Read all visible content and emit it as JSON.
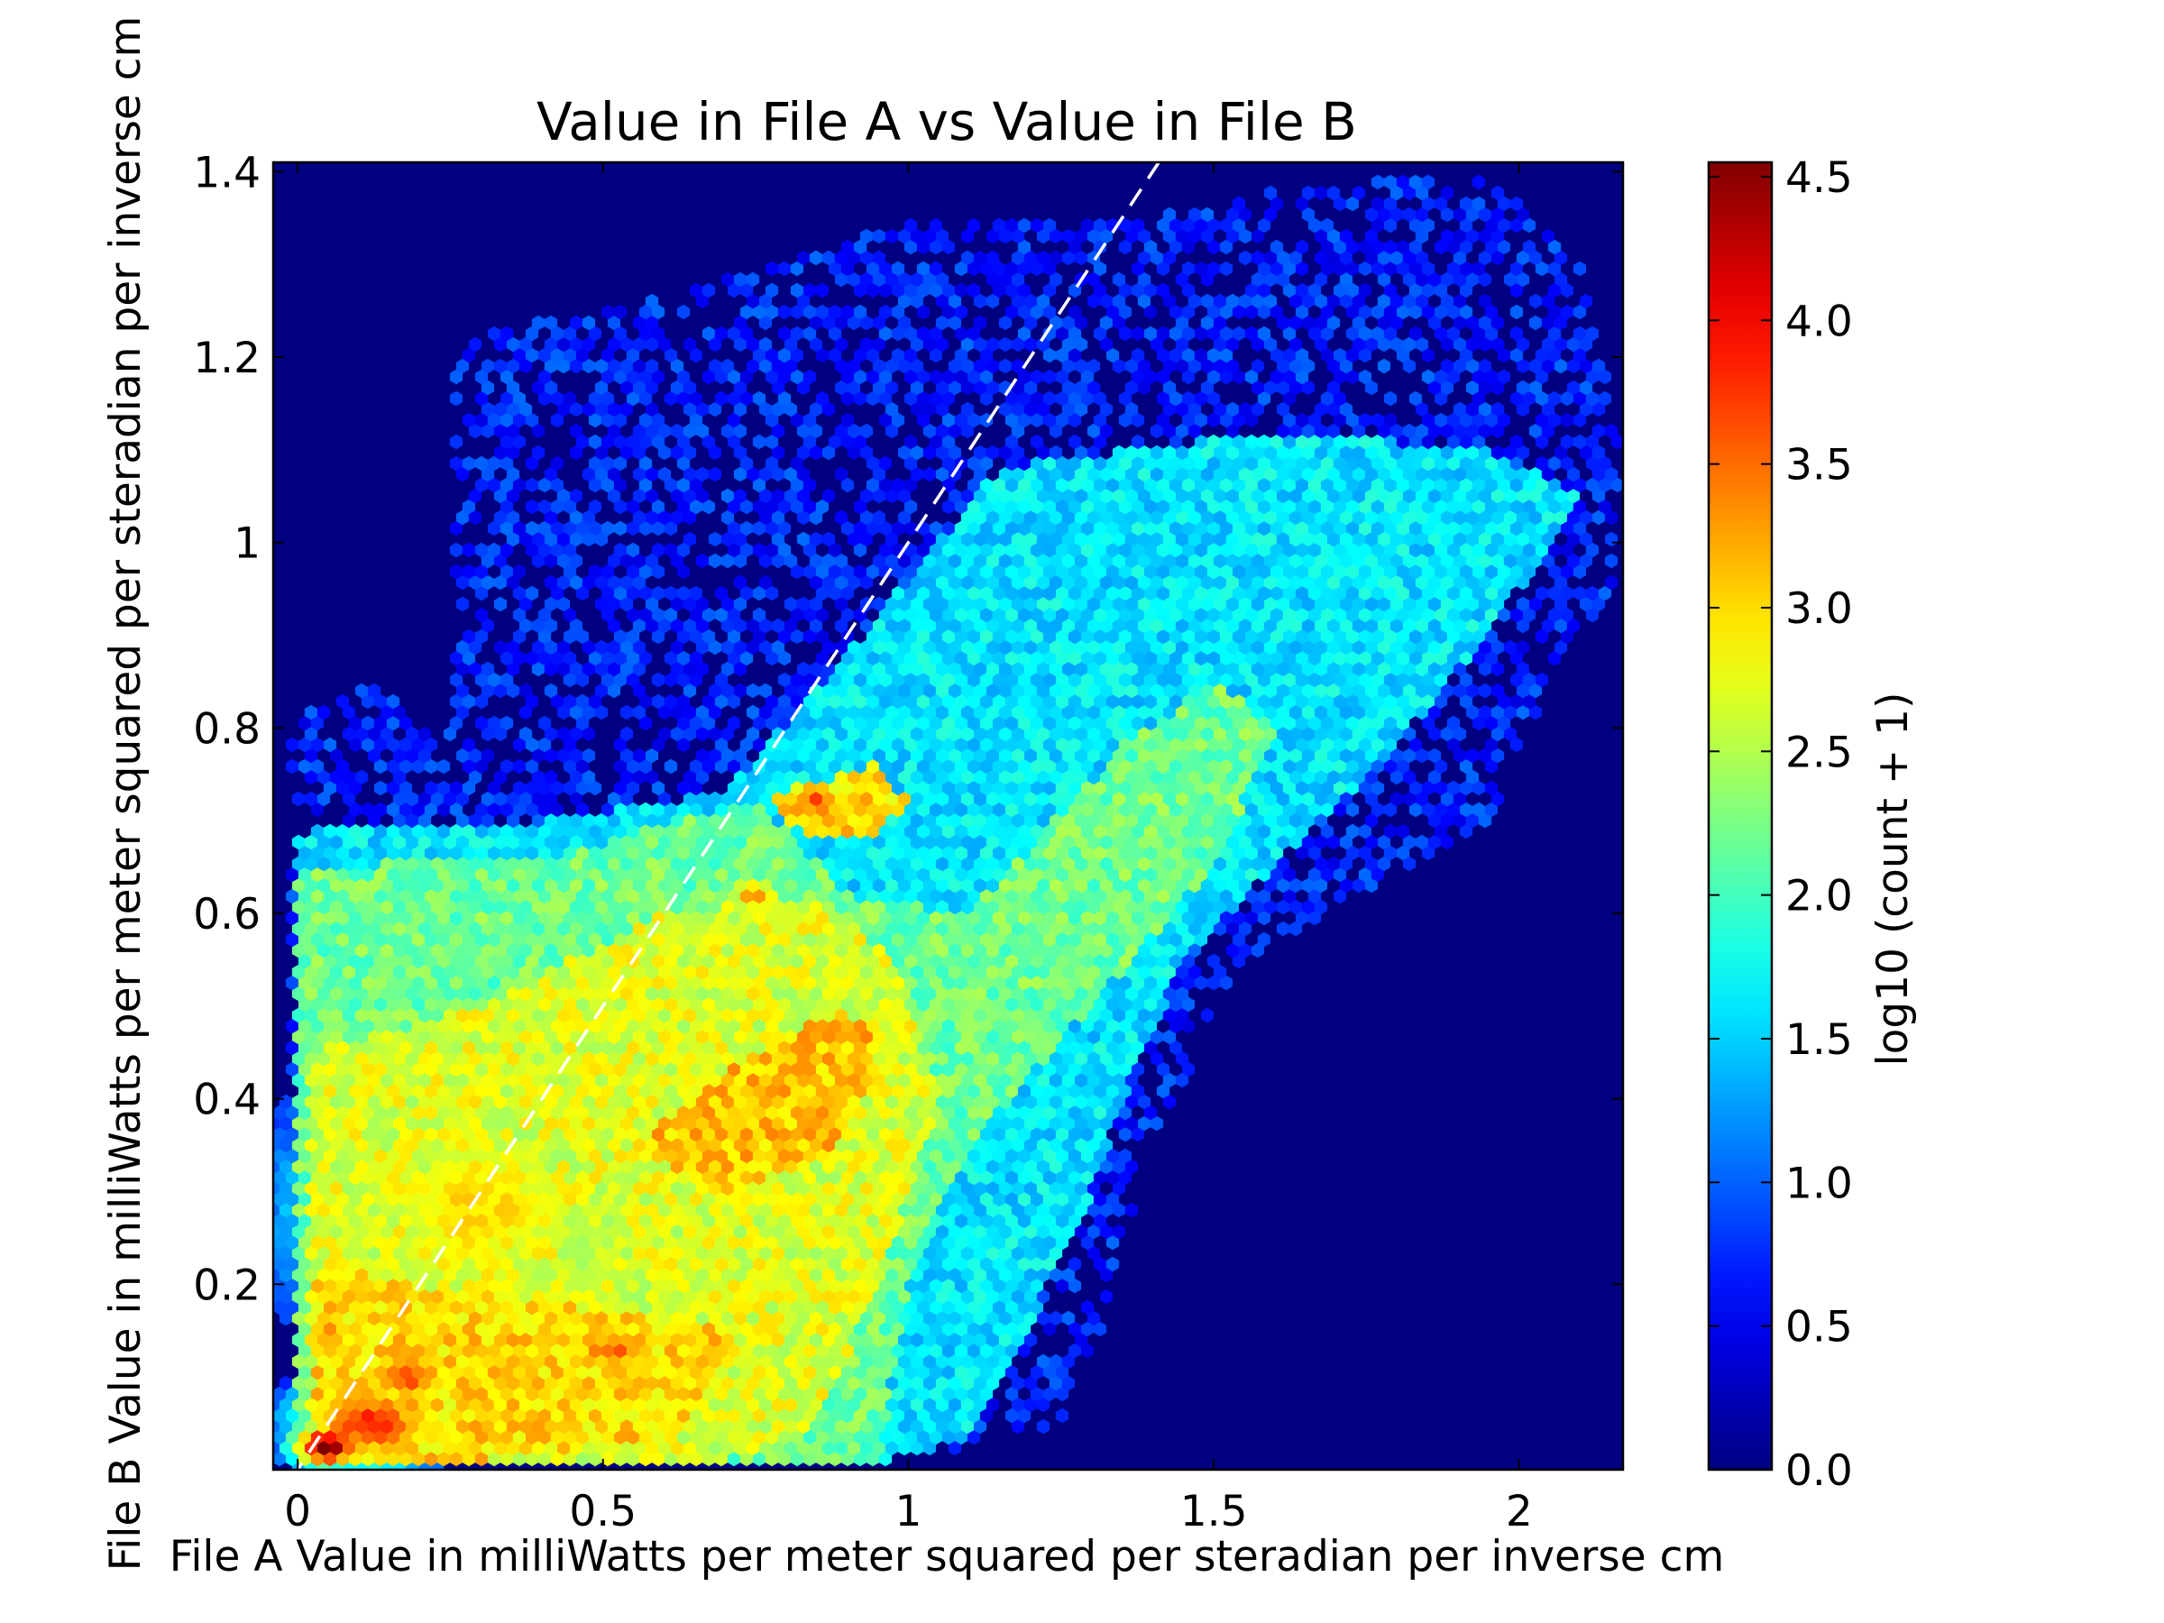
{
  "chart_data": {
    "type": "heatmap",
    "subtype": "hexbin",
    "title": "Value in File A vs Value in File B",
    "xlabel": "File A Value in milliWatts per meter squared per steradian per inverse cm",
    "ylabel": "File B Value in milliWatts per meter squared per steradian per inverse cm",
    "xlim": [
      -0.04,
      2.17
    ],
    "ylim": [
      0.0,
      1.41
    ],
    "xticks": [
      0,
      0.5,
      1,
      1.5,
      2
    ],
    "xtick_labels": [
      "0",
      "0.5",
      "1",
      "1.5",
      "2"
    ],
    "yticks": [
      0.2,
      0.4,
      0.6,
      0.8,
      1.0,
      1.2,
      1.4
    ],
    "ytick_labels": [
      "0.2",
      "0.4",
      "0.6",
      "0.8",
      "1",
      "1.2",
      "1.4"
    ],
    "reference_line": {
      "style": "dashed",
      "color": "#ffffff",
      "points": [
        [
          -0.04,
          -0.04
        ],
        [
          1.41,
          1.41
        ]
      ]
    },
    "colorbar": {
      "label": "log10 (count + 1)",
      "colormap": "jet",
      "range": [
        0.0,
        4.55
      ],
      "ticks": [
        0.0,
        0.5,
        1.0,
        1.5,
        2.0,
        2.5,
        3.0,
        3.5,
        4.0,
        4.5
      ],
      "tick_labels": [
        "0.0",
        "0.5",
        "1.0",
        "1.5",
        "2.0",
        "2.5",
        "3.0",
        "3.5",
        "4.0",
        "4.5"
      ]
    },
    "background_value": 0.0,
    "density_regions": [
      {
        "polygon": [
          [
            0.0,
            0.68
          ],
          [
            0.06,
            0.7
          ],
          [
            0.4,
            0.7
          ],
          [
            0.7,
            0.73
          ],
          [
            0.95,
            0.92
          ],
          [
            1.15,
            1.08
          ],
          [
            1.6,
            1.12
          ],
          [
            1.95,
            1.1
          ],
          [
            2.1,
            1.05
          ],
          [
            2.0,
            0.95
          ],
          [
            1.85,
            0.82
          ],
          [
            1.75,
            0.75
          ],
          [
            1.55,
            0.62
          ],
          [
            1.45,
            0.55
          ],
          [
            1.35,
            0.4
          ],
          [
            1.3,
            0.3
          ],
          [
            1.2,
            0.16
          ],
          [
            1.1,
            0.03
          ],
          [
            0.95,
            0.01
          ],
          [
            0.0,
            0.01
          ]
        ],
        "value": 1.6
      },
      {
        "polygon": [
          [
            0.0,
            0.65
          ],
          [
            0.4,
            0.66
          ],
          [
            0.75,
            0.72
          ],
          [
            0.9,
            0.62
          ],
          [
            1.1,
            0.6
          ],
          [
            1.35,
            0.78
          ],
          [
            1.5,
            0.85
          ],
          [
            1.6,
            0.8
          ],
          [
            1.5,
            0.65
          ],
          [
            1.3,
            0.5
          ],
          [
            1.1,
            0.35
          ],
          [
            1.0,
            0.2
          ],
          [
            0.95,
            0.01
          ],
          [
            0.0,
            0.01
          ]
        ],
        "value": 2.2
      },
      {
        "polygon": [
          [
            0.02,
            0.45
          ],
          [
            0.3,
            0.5
          ],
          [
            0.6,
            0.6
          ],
          [
            0.85,
            0.62
          ],
          [
            0.98,
            0.55
          ],
          [
            1.05,
            0.4
          ],
          [
            0.95,
            0.2
          ],
          [
            0.85,
            0.05
          ],
          [
            0.7,
            0.01
          ],
          [
            0.02,
            0.01
          ]
        ],
        "value": 2.7
      },
      {
        "polygon": [
          [
            0.03,
            0.22
          ],
          [
            0.2,
            0.2
          ],
          [
            0.5,
            0.17
          ],
          [
            0.72,
            0.15
          ],
          [
            0.62,
            0.04
          ],
          [
            0.3,
            0.01
          ],
          [
            0.03,
            0.01
          ]
        ],
        "value": 3.0
      },
      {
        "polygon": [
          [
            0.55,
            0.35
          ],
          [
            0.75,
            0.45
          ],
          [
            0.9,
            0.5
          ],
          [
            0.95,
            0.42
          ],
          [
            0.85,
            0.33
          ],
          [
            0.7,
            0.3
          ]
        ],
        "value": 3.1
      },
      {
        "polygon": [
          [
            0.78,
            0.73
          ],
          [
            0.95,
            0.76
          ],
          [
            1.0,
            0.72
          ],
          [
            0.93,
            0.68
          ],
          [
            0.8,
            0.69
          ]
        ],
        "value": 3.0
      }
    ],
    "density_peaks": [
      {
        "x": 0.05,
        "y": 0.025,
        "sx": 0.05,
        "sy": 0.02,
        "value": 4.55
      },
      {
        "x": 0.12,
        "y": 0.05,
        "sx": 0.1,
        "sy": 0.04,
        "value": 3.9
      },
      {
        "x": 0.18,
        "y": 0.1,
        "sx": 0.07,
        "sy": 0.03,
        "value": 3.7
      },
      {
        "x": 0.05,
        "y": 0.15,
        "sx": 0.03,
        "sy": 0.06,
        "value": 3.4
      },
      {
        "x": 0.52,
        "y": 0.13,
        "sx": 0.1,
        "sy": 0.03,
        "value": 3.5
      },
      {
        "x": 0.85,
        "y": 0.72,
        "sx": 0.05,
        "sy": 0.02,
        "value": 3.7
      },
      {
        "x": 0.75,
        "y": 0.62,
        "sx": 0.05,
        "sy": 0.02,
        "value": 3.3
      },
      {
        "x": 0.92,
        "y": 0.47,
        "sx": 0.06,
        "sy": 0.025,
        "value": 3.4
      },
      {
        "x": 0.85,
        "y": 0.38,
        "sx": 0.07,
        "sy": 0.05,
        "value": 3.3
      },
      {
        "x": 0.3,
        "y": 0.28,
        "sx": 0.25,
        "sy": 0.12,
        "value": 3.0
      }
    ],
    "sparse_regions": [
      {
        "polygon": [
          [
            0.25,
            1.22
          ],
          [
            0.5,
            1.25
          ],
          [
            0.8,
            1.3
          ],
          [
            1.0,
            1.35
          ],
          [
            1.4,
            1.35
          ],
          [
            1.6,
            1.38
          ],
          [
            1.95,
            1.4
          ],
          [
            2.1,
            1.3
          ],
          [
            2.17,
            1.1
          ],
          [
            2.15,
            0.95
          ],
          [
            2.05,
            0.85
          ],
          [
            1.95,
            0.7
          ],
          [
            1.55,
            0.55
          ],
          [
            1.4,
            0.35
          ],
          [
            1.32,
            0.15
          ],
          [
            1.25,
            0.05
          ],
          [
            1.0,
            0.01
          ],
          [
            0.0,
            0.01
          ],
          [
            -0.02,
            0.8
          ],
          [
            0.1,
            0.85
          ],
          [
            0.25,
            0.8
          ]
        ],
        "value": 0.7,
        "fill_fraction": 0.6
      }
    ]
  }
}
